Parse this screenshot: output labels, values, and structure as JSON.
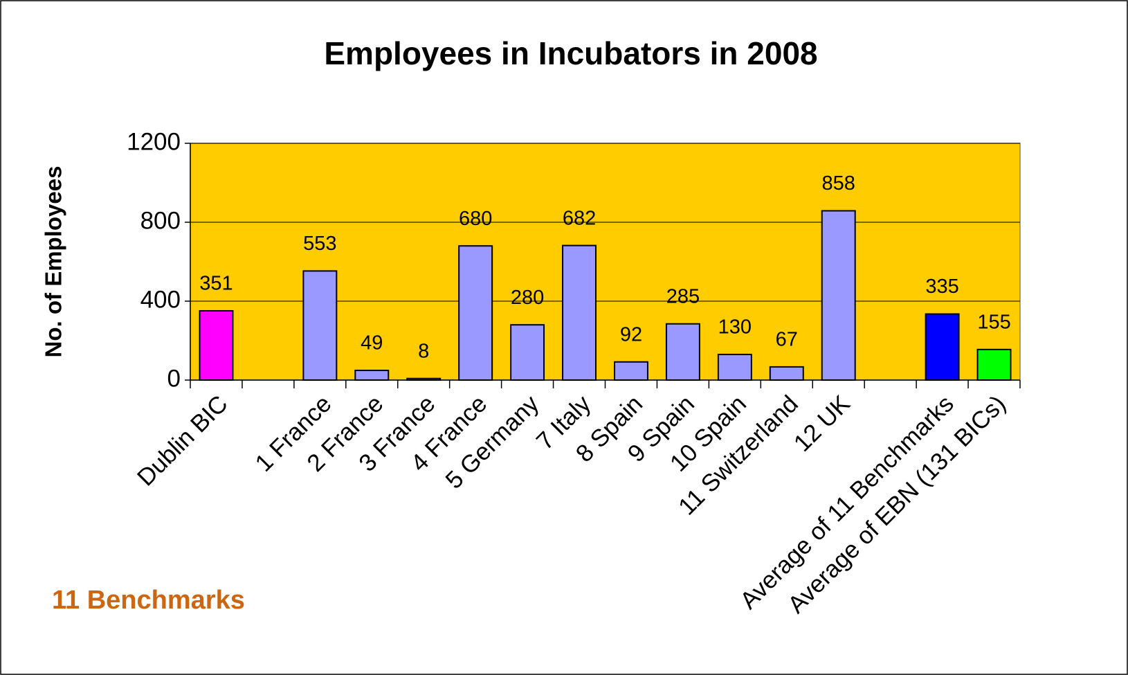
{
  "chart_data": {
    "type": "bar",
    "title": "Employees in Incubators in 2008",
    "y_label": "No. of Employees",
    "annotation": "11 Benchmarks",
    "categories": [
      "Dublin BIC",
      null,
      "1 France",
      "2 France",
      "3 France",
      "4 France",
      "5 Germany",
      "7 Italy",
      "8 Spain",
      "9 Spain",
      "10 Spain",
      "11 Switzerland",
      "12 UK",
      null,
      "Average of 11 Benchmarks",
      "Average of EBN (131 BICs)"
    ],
    "values": [
      351,
      null,
      553,
      49,
      8,
      680,
      280,
      682,
      92,
      285,
      130,
      67,
      858,
      null,
      335,
      155
    ],
    "colors": [
      "#ff00ff",
      null,
      "#9999ff",
      "#9999ff",
      "#9999ff",
      "#9999ff",
      "#9999ff",
      "#9999ff",
      "#9999ff",
      "#9999ff",
      "#9999ff",
      "#9999ff",
      "#9999ff",
      null,
      "#0000ff",
      "#00ff00"
    ],
    "plot_background": "#ffcc00",
    "ylim": [
      0,
      1200
    ],
    "yticks": [
      0,
      400,
      800,
      1200
    ],
    "grid": true
  }
}
